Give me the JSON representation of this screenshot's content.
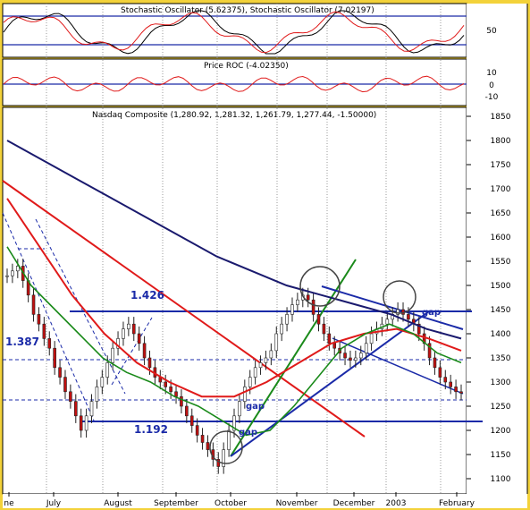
{
  "chart_data": {
    "type": "candlestick",
    "panels": {
      "stochastic": {
        "title": "Stochastic Oscillator (5.62375), Stochastic Oscillator (7.02197)",
        "y_tick_labels": [
          "50"
        ],
        "ylim": [
          0,
          100
        ]
      },
      "roc": {
        "title": "Price ROC (-4.02350)",
        "y_tick_labels": [
          "10",
          "0",
          "-10"
        ],
        "ylim": [
          -15,
          15
        ]
      },
      "price": {
        "title": "Nasdaq Composite (1,280.92, 1,281.32, 1,261.79, 1,277.44, -1.50000)",
        "y_tick_labels": [
          "1850",
          "1800",
          "1750",
          "1700",
          "1650",
          "1600",
          "1550",
          "1500",
          "1450",
          "1400",
          "1350",
          "1300",
          "1250",
          "1200",
          "1150",
          "1100"
        ],
        "ylim": [
          1070,
          1855
        ]
      }
    },
    "x_tick_labels": [
      "ne",
      "July",
      "August",
      "September",
      "October",
      "November",
      "December",
      "2003",
      "February"
    ],
    "annotations": [
      "1.426",
      "1.387",
      "1.192",
      "gap",
      "gap",
      "gap"
    ],
    "horizontal_levels": [
      1426,
      1387,
      1192
    ],
    "price_series": {
      "approx_closes": [
        1520,
        1530,
        1540,
        1510,
        1480,
        1440,
        1420,
        1390,
        1370,
        1330,
        1310,
        1280,
        1260,
        1230,
        1200,
        1230,
        1260,
        1290,
        1310,
        1340,
        1370,
        1390,
        1410,
        1420,
        1400,
        1380,
        1350,
        1330,
        1310,
        1300,
        1290,
        1280,
        1270,
        1250,
        1230,
        1210,
        1190,
        1175,
        1160,
        1140,
        1125,
        1160,
        1200,
        1230,
        1260,
        1290,
        1310,
        1330,
        1340,
        1350,
        1365,
        1400,
        1420,
        1440,
        1460,
        1470,
        1480,
        1470,
        1440,
        1420,
        1400,
        1380,
        1370,
        1360,
        1350,
        1345,
        1350,
        1360,
        1380,
        1400,
        1410,
        1420,
        1430,
        1440,
        1450,
        1440,
        1430,
        1420,
        1400,
        1380,
        1350,
        1330,
        1310,
        1300,
        1290,
        1280,
        1277
      ]
    },
    "moving_averages": [
      {
        "color": "#1a1a6e",
        "values": [
          1800,
          1760,
          1720,
          1680,
          1640,
          1600,
          1560,
          1530,
          1500,
          1480,
          1460,
          1440,
          1410,
          1390
        ]
      },
      {
        "color": "#e01a1a",
        "values": [
          1680,
          1580,
          1480,
          1400,
          1340,
          1300,
          1270,
          1270,
          1300,
          1340,
          1380,
          1400,
          1410,
          1390,
          1365
        ]
      },
      {
        "color": "#1a8a1a",
        "values": [
          1580,
          1500,
          1450,
          1400,
          1350,
          1320,
          1300,
          1270,
          1250,
          1220,
          1190,
          1200,
          1250,
          1310,
          1370,
          1400,
          1420,
          1400,
          1360,
          1340
        ]
      }
    ]
  }
}
